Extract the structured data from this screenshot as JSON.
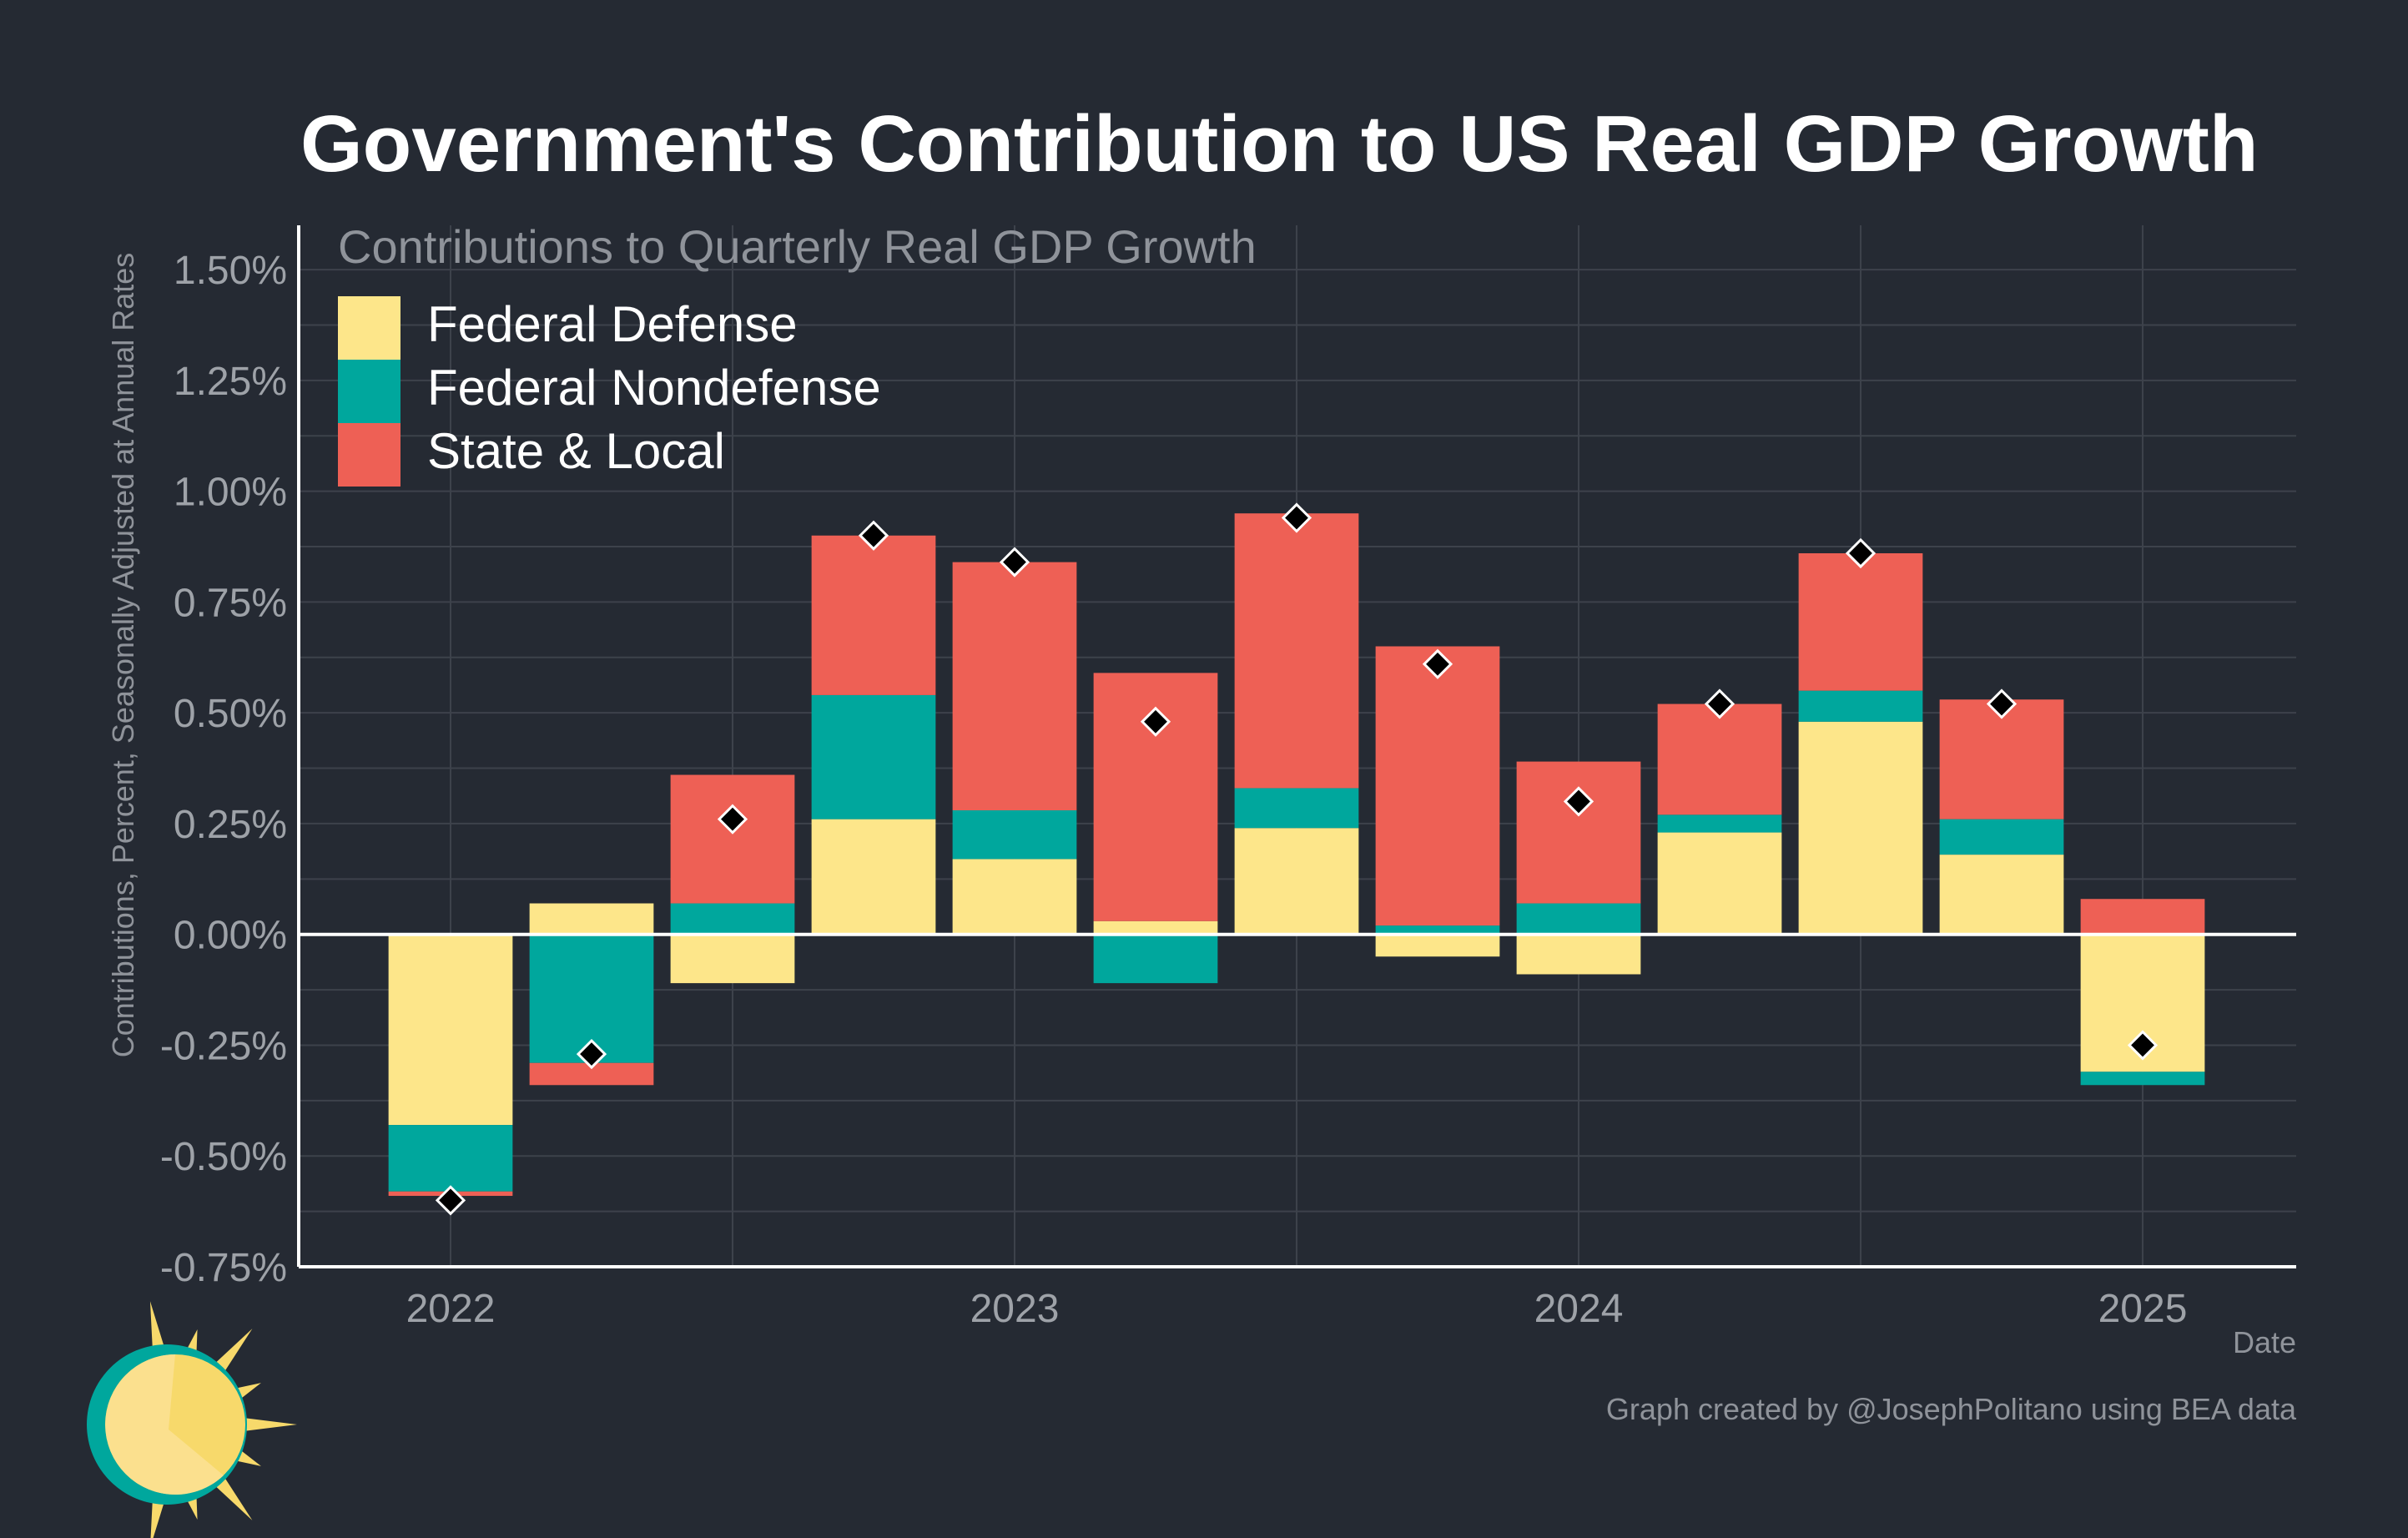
{
  "chart_data": {
    "type": "bar",
    "stacked": true,
    "title": "Government's Contribution to US Real GDP Growth",
    "subtitle": "Contributions to Quarterly Real GDP Growth",
    "ylabel": "Contributions, Percent, Seasonally Adjusted at Annual Rates",
    "xlabel": "Date",
    "caption": "Graph created by @JosephPolitano using BEA data",
    "ylim": [
      -0.75,
      1.6
    ],
    "y_ticks": [
      1.5,
      1.25,
      1.0,
      0.75,
      0.5,
      0.25,
      0.0,
      -0.25,
      -0.5,
      -0.75
    ],
    "y_tick_labels": [
      "1.50%",
      "1.25%",
      "1.00%",
      "0.75%",
      "0.50%",
      "0.25%",
      "0.00%",
      "-0.25%",
      "-0.50%",
      "-0.75%"
    ],
    "x_ticks": [
      2022,
      2023,
      2024,
      2025
    ],
    "x_tick_labels": [
      "2022",
      "2023",
      "2024",
      "2025"
    ],
    "grid": true,
    "legend_position": "top-left",
    "categories": [
      "2022 Q1",
      "2022 Q2",
      "2022 Q3",
      "2022 Q4",
      "2023 Q1",
      "2023 Q2",
      "2023 Q3",
      "2023 Q4",
      "2024 Q1",
      "2024 Q2",
      "2024 Q3",
      "2024 Q4",
      "2025 Q1"
    ],
    "x": [
      2022.0,
      2022.25,
      2022.5,
      2022.75,
      2023.0,
      2023.25,
      2023.5,
      2023.75,
      2024.0,
      2024.25,
      2024.5,
      2024.75,
      2025.0
    ],
    "series": [
      {
        "name": "Federal Defense",
        "color": "#fde68a",
        "values": [
          -0.43,
          0.07,
          -0.11,
          0.26,
          0.17,
          0.03,
          0.24,
          -0.05,
          -0.09,
          0.23,
          0.48,
          0.18,
          -0.31
        ]
      },
      {
        "name": "Federal Nondefense",
        "color": "#00a79d",
        "values": [
          -0.15,
          -0.29,
          0.07,
          0.28,
          0.11,
          -0.11,
          0.09,
          0.02,
          0.07,
          0.04,
          0.07,
          0.08,
          -0.03
        ]
      },
      {
        "name": "State & Local",
        "color": "#ee6055",
        "values": [
          -0.01,
          -0.05,
          0.29,
          0.36,
          0.56,
          0.56,
          0.62,
          0.63,
          0.32,
          0.25,
          0.31,
          0.27,
          0.08
        ]
      }
    ],
    "totals": [
      -0.6,
      -0.27,
      0.26,
      0.9,
      0.84,
      0.48,
      0.94,
      0.61,
      0.3,
      0.52,
      0.86,
      0.52,
      -0.25
    ],
    "totals_marker": "diamond"
  },
  "colors": {
    "background": "#252a33",
    "title": "#ffffff",
    "muted_text": "#8f939a",
    "tick_text": "#9ea2a8",
    "legend_text": "#ffffff",
    "grid": "#3d424b",
    "axis": "#ffffff",
    "marker": "#000000",
    "marker_stroke": "#ffffff",
    "logo_teal": "#00a79d",
    "logo_sun": "#f7d96b",
    "logo_face": "#fbe08e"
  },
  "logo": {
    "icon": "sun-logo-icon"
  }
}
